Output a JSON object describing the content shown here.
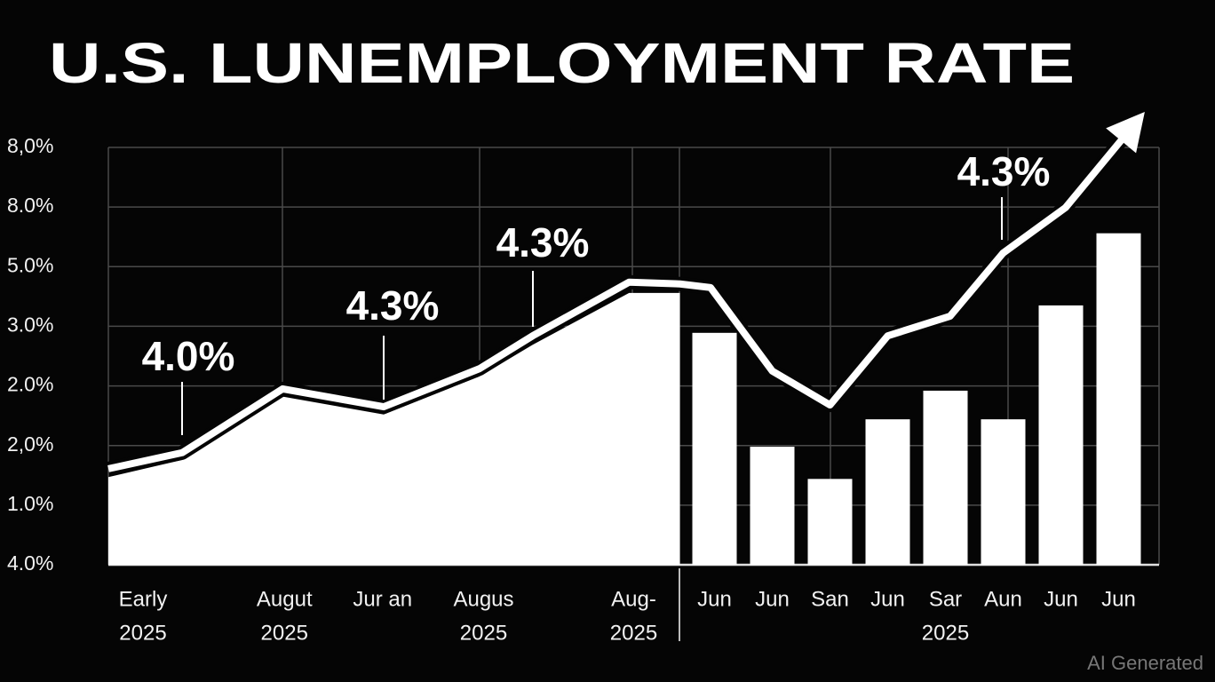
{
  "chart_data": {
    "type": "combo",
    "title": "U.S. LUNEMPLOYMENT RATE",
    "watermark": "AI Generated",
    "ylim": [
      0,
      7
    ],
    "yticks": [
      {
        "value": 0,
        "label": "4.0%"
      },
      {
        "value": 1,
        "label": "1.0%"
      },
      {
        "value": 2,
        "label": "2,0%"
      },
      {
        "value": 3,
        "label": "2.0%"
      },
      {
        "value": 4,
        "label": "3.0%"
      },
      {
        "value": 5,
        "label": "5.0%"
      },
      {
        "value": 6,
        "label": "8.0%"
      },
      {
        "value": 7,
        "label": "8,0%"
      }
    ],
    "xlim": [
      0,
      18.2
    ],
    "categories": [
      "Early",
      "Augut",
      "Jur  an",
      "Augus",
      "Aug-",
      "Jun",
      "Jun",
      "San",
      "Jun",
      "Sar",
      "Aun",
      "Jun",
      "Jun"
    ],
    "x": [
      0.6,
      3.05,
      4.75,
      6.5,
      9.1,
      10.5,
      11.5,
      12.5,
      13.5,
      14.5,
      15.5,
      16.5,
      17.5
    ],
    "year_labels": [
      "2025",
      "2025",
      "2025",
      "2025",
      "2025"
    ],
    "year_x": [
      0.6,
      3.05,
      6.5,
      9.1,
      14.5
    ],
    "series": [
      {
        "type": "area",
        "color": "#ffffff",
        "x": [
          0,
          1.28,
          3.02,
          4.77,
          6.43,
          7.35,
          9.02,
          9.9
        ],
        "values": [
          1.47,
          1.76,
          2.82,
          2.52,
          3.16,
          3.69,
          4.56,
          4.56
        ]
      },
      {
        "type": "line",
        "color": "#ffffff",
        "x": [
          0,
          1.28,
          3.02,
          4.77,
          6.43,
          7.35,
          9.02,
          9.9,
          10.43,
          11.5,
          12.5,
          13.5,
          14.58,
          15.5,
          16.58,
          17.58
        ],
        "values": [
          1.61,
          1.88,
          2.95,
          2.65,
          3.29,
          3.84,
          4.74,
          4.71,
          4.65,
          3.25,
          2.68,
          3.84,
          4.17,
          5.23,
          5.99,
          7.16
        ]
      },
      {
        "type": "bar",
        "color": "#ffffff",
        "x": [
          10.5,
          11.5,
          12.5,
          13.5,
          14.5,
          15.5,
          16.5,
          17.5
        ],
        "values": [
          3.89,
          1.98,
          1.44,
          2.44,
          2.92,
          2.44,
          4.35,
          5.56
        ]
      }
    ],
    "annotations": [
      "4.0%",
      "4.3%",
      "4.3%",
      "4.3%"
    ]
  }
}
